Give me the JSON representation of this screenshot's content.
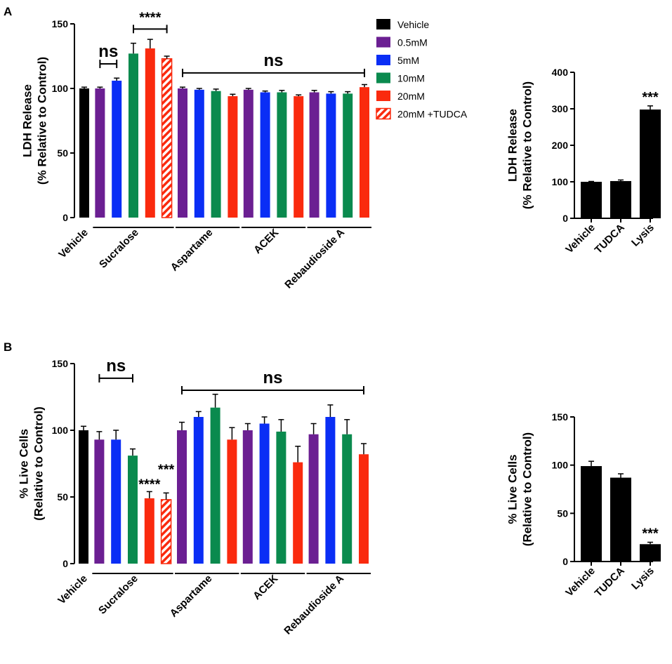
{
  "chart_data": [
    {
      "panel": "A",
      "type": "bar",
      "ylabel_line1": "LDH Release",
      "ylabel_line2": "(% Relative to Control)",
      "ylim": [
        0,
        150
      ],
      "yticks": [
        "0",
        "50",
        "100",
        "150"
      ],
      "group_labels": [
        "Vehicle",
        "Sucralose",
        "Aspartame",
        "ACEK",
        "Rebaudioside A"
      ],
      "legend": [
        {
          "key": "vehicle",
          "label": "Vehicle",
          "color": "#000000",
          "hatched": false
        },
        {
          "key": "c05",
          "label": "0.5mM",
          "color": "#6B1F92",
          "hatched": false
        },
        {
          "key": "c5",
          "label": "5mM",
          "color": "#0A2EF5",
          "hatched": false
        },
        {
          "key": "c10",
          "label": "10mM",
          "color": "#0A8A4E",
          "hatched": false
        },
        {
          "key": "c20",
          "label": "20mM",
          "color": "#FA2A0E",
          "hatched": false
        },
        {
          "key": "c20t",
          "label": "20mM +TUDCA",
          "color": "#FA2A0E",
          "hatched": true
        }
      ],
      "bars": [
        {
          "group": "Vehicle",
          "series": "vehicle",
          "value": 100,
          "error": 1
        },
        {
          "group": "Sucralose",
          "series": "c05",
          "value": 100,
          "error": 1
        },
        {
          "group": "Sucralose",
          "series": "c5",
          "value": 106,
          "error": 2
        },
        {
          "group": "Sucralose",
          "series": "c10",
          "value": 127,
          "error": 8
        },
        {
          "group": "Sucralose",
          "series": "c20",
          "value": 131,
          "error": 7
        },
        {
          "group": "Sucralose",
          "series": "c20t",
          "value": 123,
          "error": 2
        },
        {
          "group": "Aspartame",
          "series": "c05",
          "value": 100,
          "error": 1
        },
        {
          "group": "Aspartame",
          "series": "c5",
          "value": 99,
          "error": 1
        },
        {
          "group": "Aspartame",
          "series": "c10",
          "value": 98,
          "error": 1.5
        },
        {
          "group": "Aspartame",
          "series": "c20",
          "value": 94,
          "error": 1.5
        },
        {
          "group": "ACEK",
          "series": "c05",
          "value": 99,
          "error": 1
        },
        {
          "group": "ACEK",
          "series": "c5",
          "value": 97,
          "error": 1
        },
        {
          "group": "ACEK",
          "series": "c10",
          "value": 97,
          "error": 1.5
        },
        {
          "group": "ACEK",
          "series": "c20",
          "value": 94,
          "error": 1
        },
        {
          "group": "Rebaudioside A",
          "series": "c05",
          "value": 97,
          "error": 1.5
        },
        {
          "group": "Rebaudioside A",
          "series": "c5",
          "value": 96,
          "error": 1.5
        },
        {
          "group": "Rebaudioside A",
          "series": "c10",
          "value": 96,
          "error": 1.5
        },
        {
          "group": "Rebaudioside A",
          "series": "c20",
          "value": 101,
          "error": 2
        }
      ],
      "annotations": [
        {
          "text": "ns",
          "style": "ns",
          "from_bar": 1,
          "to_bar": 2,
          "y": 119,
          "ticks": true
        },
        {
          "text": "****",
          "style": "star",
          "from_bar": 3,
          "to_bar": 5,
          "y": 146,
          "ticks": true
        },
        {
          "text": "ns",
          "style": "ns",
          "from_bar": 6,
          "to_bar": 17,
          "y": 112,
          "ticks": true
        }
      ]
    },
    {
      "panel": "",
      "type": "bar",
      "ylabel_line1": "LDH Release",
      "ylabel_line2": "(% Relative to Control)",
      "ylim": [
        0,
        400
      ],
      "yticks": [
        "0",
        "100",
        "200",
        "300",
        "400"
      ],
      "categories": [
        "Vehicle",
        "TUDCA",
        "Lysis"
      ],
      "values": [
        100,
        102,
        298
      ],
      "errors": [
        1,
        3,
        10
      ],
      "bar_color": "#000000",
      "annotations": [
        {
          "text": "***",
          "bar": 2
        }
      ]
    },
    {
      "panel": "B",
      "type": "bar",
      "ylabel_line1": "% Live Cells",
      "ylabel_line2": "(Relative to Control)",
      "ylim": [
        0,
        150
      ],
      "yticks": [
        "0",
        "50",
        "100",
        "150"
      ],
      "group_labels": [
        "Vehicle",
        "Sucralose",
        "Aspartame",
        "ACEK",
        "Rebaudioside A"
      ],
      "bars": [
        {
          "group": "Vehicle",
          "series": "vehicle",
          "value": 100,
          "error": 3
        },
        {
          "group": "Sucralose",
          "series": "c05",
          "value": 93,
          "error": 6
        },
        {
          "group": "Sucralose",
          "series": "c5",
          "value": 93,
          "error": 7
        },
        {
          "group": "Sucralose",
          "series": "c10",
          "value": 81,
          "error": 5
        },
        {
          "group": "Sucralose",
          "series": "c20",
          "value": 49,
          "error": 5
        },
        {
          "group": "Sucralose",
          "series": "c20t",
          "value": 48,
          "error": 5
        },
        {
          "group": "Aspartame",
          "series": "c05",
          "value": 100,
          "error": 6
        },
        {
          "group": "Aspartame",
          "series": "c5",
          "value": 110,
          "error": 4
        },
        {
          "group": "Aspartame",
          "series": "c10",
          "value": 117,
          "error": 10
        },
        {
          "group": "Aspartame",
          "series": "c20",
          "value": 93,
          "error": 9
        },
        {
          "group": "ACEK",
          "series": "c05",
          "value": 100,
          "error": 5
        },
        {
          "group": "ACEK",
          "series": "c5",
          "value": 105,
          "error": 5
        },
        {
          "group": "ACEK",
          "series": "c10",
          "value": 99,
          "error": 9
        },
        {
          "group": "ACEK",
          "series": "c20",
          "value": 76,
          "error": 12
        },
        {
          "group": "Rebaudioside A",
          "series": "c05",
          "value": 97,
          "error": 8
        },
        {
          "group": "Rebaudioside A",
          "series": "c5",
          "value": 110,
          "error": 9
        },
        {
          "group": "Rebaudioside A",
          "series": "c10",
          "value": 97,
          "error": 11
        },
        {
          "group": "Rebaudioside A",
          "series": "c20",
          "value": 82,
          "error": 8
        }
      ],
      "annotations": [
        {
          "text": "ns",
          "style": "ns",
          "from_bar": 1,
          "to_bar": 3,
          "y": 139,
          "ticks": true
        },
        {
          "text": "ns",
          "style": "ns",
          "from_bar": 6,
          "to_bar": 17,
          "y": 130,
          "ticks": true
        },
        {
          "text": "****",
          "style": "star",
          "bar": 4,
          "y": 56,
          "ticks": false
        },
        {
          "text": "***",
          "style": "star",
          "bar": 5,
          "y": 67,
          "ticks": false
        }
      ]
    },
    {
      "panel": "",
      "type": "bar",
      "ylabel_line1": "% Live Cells",
      "ylabel_line2": "(Relative to Control)",
      "ylim": [
        0,
        150
      ],
      "yticks": [
        "0",
        "50",
        "100",
        "150"
      ],
      "categories": [
        "Vehicle",
        "TUDCA",
        "Lysis"
      ],
      "values": [
        99,
        87,
        18
      ],
      "errors": [
        5,
        4,
        2
      ],
      "bar_color": "#000000",
      "annotations": [
        {
          "text": "***",
          "bar": 2
        }
      ]
    }
  ]
}
